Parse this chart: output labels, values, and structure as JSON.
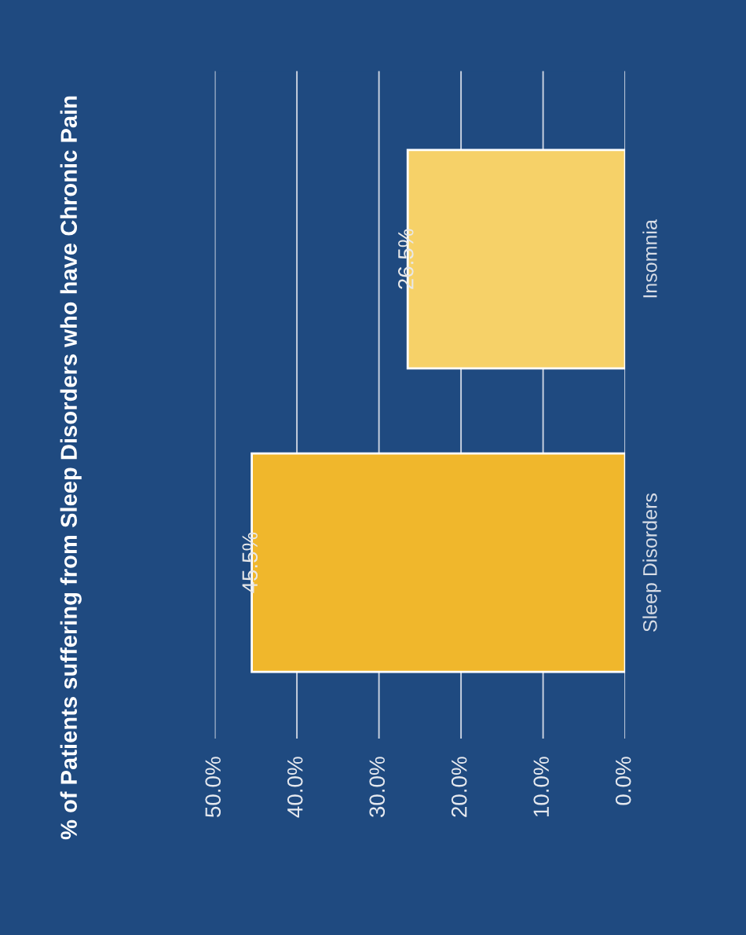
{
  "chart_data": {
    "type": "bar",
    "orientation": "horizontal",
    "title": "% of Patients suffering from Sleep Disorders who have Chronic Pain",
    "categories": [
      "Insomnia",
      "Sleep Disorders"
    ],
    "values": [
      26.5,
      45.5
    ],
    "colors": [
      "#f6d168",
      "#f0b72c"
    ],
    "value_labels": [
      "26.5%",
      "45.5%"
    ],
    "xlim": [
      50,
      0
    ],
    "xticks": [
      {
        "value": 50,
        "label": "50.0%"
      },
      {
        "value": 40,
        "label": "40.0%"
      },
      {
        "value": 30,
        "label": "30.0%"
      },
      {
        "value": 20,
        "label": "20.0%"
      },
      {
        "value": 10,
        "label": "10.0%"
      },
      {
        "value": 0,
        "label": "0.0%"
      }
    ],
    "grid": "x",
    "legend": false
  }
}
